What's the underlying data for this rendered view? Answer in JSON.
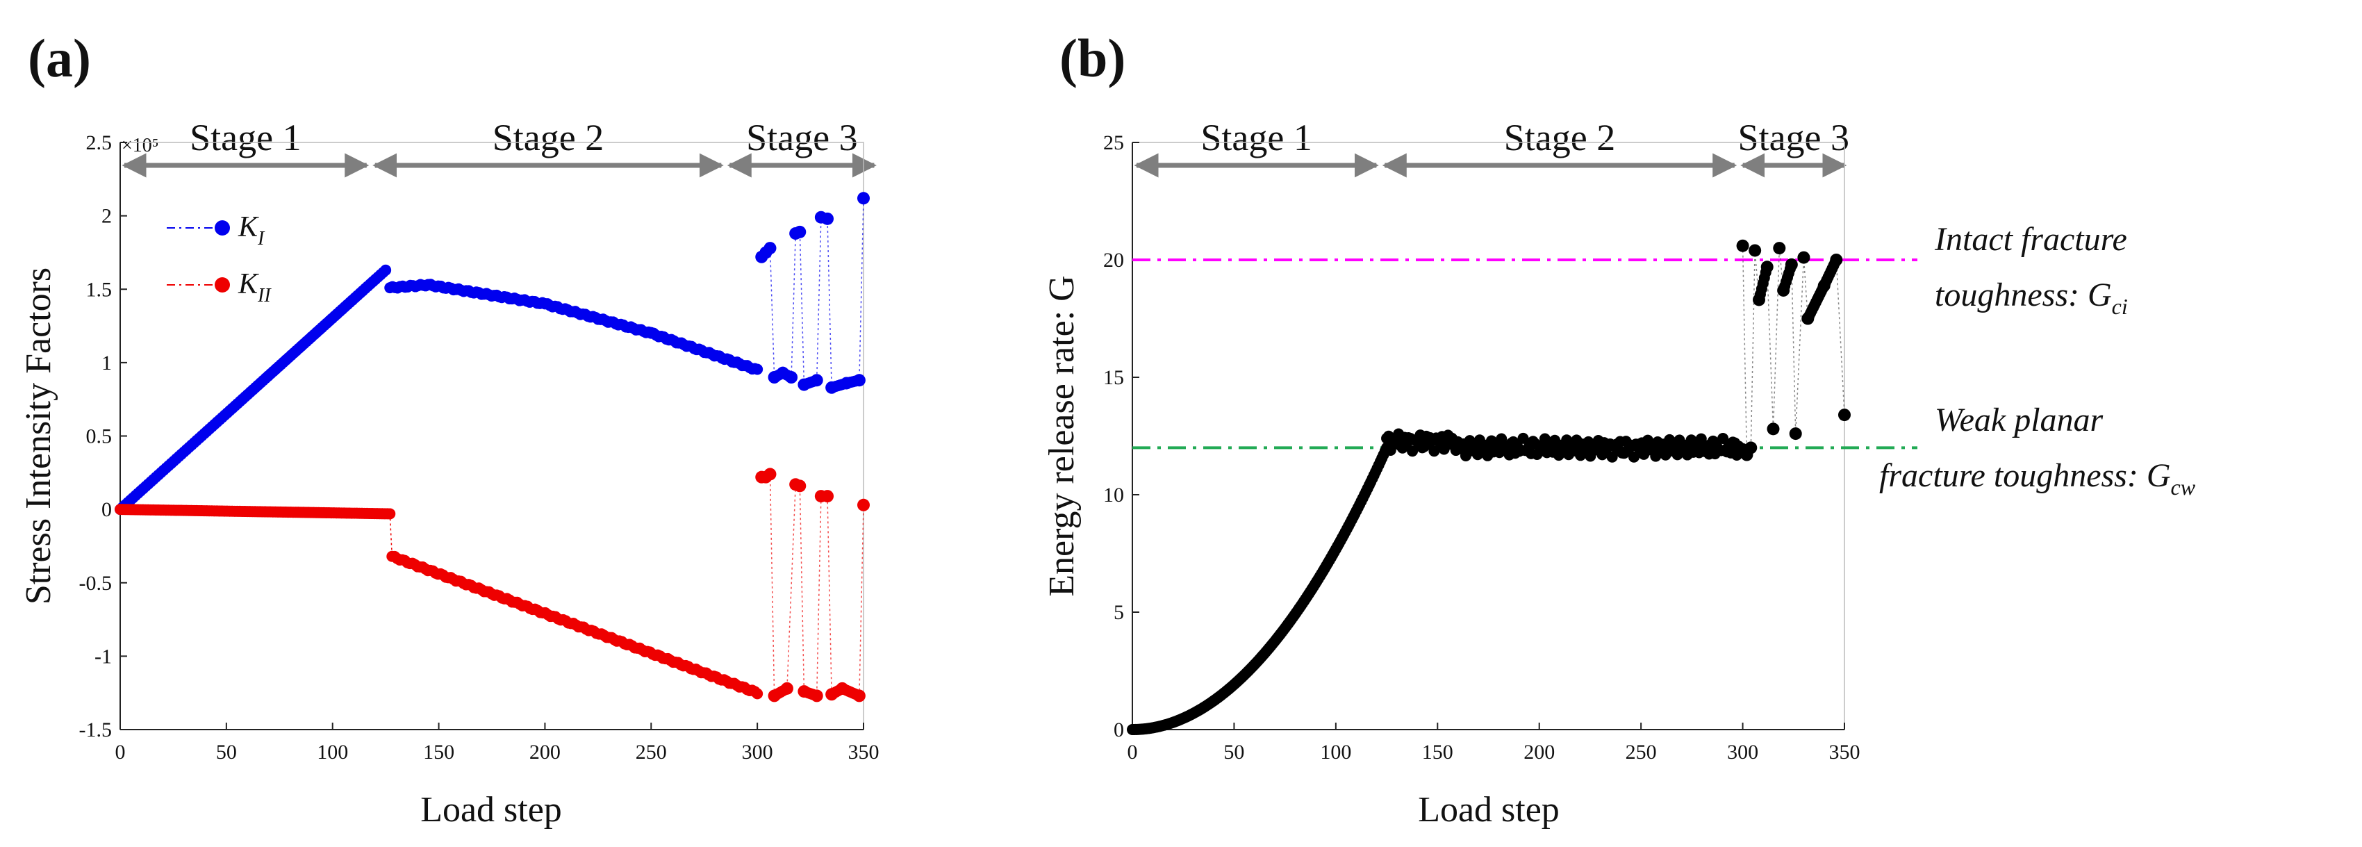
{
  "figure": {
    "panel_a_label": "(a)",
    "panel_b_label": "(b)"
  },
  "chart_data": [
    {
      "type": "scatter",
      "ylabel": "Stress Intensity Factors",
      "xlabel": "Load step",
      "y_multiplier": "×10⁵",
      "xlim": [
        0,
        350
      ],
      "ylim": [
        -1.5,
        2.5
      ],
      "xticks": [
        "0",
        "50",
        "100",
        "150",
        "200",
        "250",
        "300",
        "350"
      ],
      "yticks": [
        "-1.5",
        "-1",
        "-0.5",
        "0",
        "0.5",
        "1",
        "1.5",
        "2",
        "2.5"
      ],
      "legend_position": "top-left",
      "stages": [
        {
          "label": "Stage 1",
          "from": 0,
          "to": 118
        },
        {
          "label": "Stage 2",
          "from": 118,
          "to": 285
        },
        {
          "label": "Stage 3",
          "from": 285,
          "to": 357
        }
      ],
      "series": [
        {
          "name": "K",
          "subscript": "I",
          "color": "#0000ee",
          "segments": [
            {
              "x_from": 0,
              "x_to": 125,
              "y_from": 0,
              "y_to": 1.63
            },
            {
              "x_from": 127,
              "x_to": 145,
              "y_from": 1.51,
              "y_to": 1.53
            },
            {
              "x_from": 145,
              "x_to": 200,
              "y_from": 1.53,
              "y_to": 1.4
            },
            {
              "x_from": 200,
              "x_to": 250,
              "y_from": 1.4,
              "y_to": 1.2
            },
            {
              "x_from": 250,
              "x_to": 300,
              "y_from": 1.2,
              "y_to": 0.95
            }
          ],
          "stage3_points": [
            [
              302,
              1.72
            ],
            [
              304,
              1.75
            ],
            [
              306,
              1.78
            ],
            [
              308,
              0.9
            ],
            [
              312,
              0.93
            ],
            [
              316,
              0.9
            ],
            [
              318,
              1.88
            ],
            [
              320,
              1.89
            ],
            [
              322,
              0.85
            ],
            [
              328,
              0.88
            ],
            [
              330,
              1.99
            ],
            [
              333,
              1.98
            ],
            [
              335,
              0.83
            ],
            [
              342,
              0.86
            ],
            [
              348,
              0.88
            ],
            [
              350,
              2.12
            ]
          ]
        },
        {
          "name": "K",
          "subscript": "II",
          "color": "#ee0000",
          "segments": [
            {
              "x_from": 0,
              "x_to": 127,
              "y_from": 0,
              "y_to": -0.03
            },
            {
              "x_from": 128,
              "x_to": 300,
              "y_from": -0.32,
              "y_to": -1.25
            }
          ],
          "stage3_points": [
            [
              302,
              0.22
            ],
            [
              304,
              0.22
            ],
            [
              306,
              0.24
            ],
            [
              308,
              -1.27
            ],
            [
              314,
              -1.22
            ],
            [
              318,
              0.17
            ],
            [
              320,
              0.16
            ],
            [
              322,
              -1.24
            ],
            [
              328,
              -1.27
            ],
            [
              330,
              0.09
            ],
            [
              333,
              0.09
            ],
            [
              335,
              -1.26
            ],
            [
              340,
              -1.22
            ],
            [
              348,
              -1.27
            ],
            [
              350,
              0.03
            ]
          ]
        }
      ]
    },
    {
      "type": "scatter",
      "ylabel": "Energy release rate: G",
      "xlabel": "Load step",
      "xlim": [
        0,
        350
      ],
      "ylim": [
        0,
        25
      ],
      "xticks": [
        "0",
        "50",
        "100",
        "150",
        "200",
        "250",
        "300",
        "350"
      ],
      "yticks": [
        "0",
        "5",
        "10",
        "15",
        "20",
        "25"
      ],
      "stages": [
        {
          "label": "Stage 1",
          "from": 0,
          "to": 122
        },
        {
          "label": "Stage 2",
          "from": 122,
          "to": 298
        },
        {
          "label": "Stage 3",
          "from": 298,
          "to": 352
        }
      ],
      "series": [
        {
          "name": "G",
          "color": "#000000",
          "rise": {
            "x_from": 0,
            "x_to": 125,
            "y_at_end": 12.0
          },
          "plateau": {
            "x_from": 125,
            "x_to": 300,
            "y": 12.0
          },
          "stage3_points": [
            [
              300,
              20.6
            ],
            [
              302,
              11.7
            ],
            [
              304,
              12.0
            ],
            [
              306,
              20.4
            ],
            [
              308,
              18.3
            ],
            [
              312,
              19.7
            ],
            [
              315,
              12.8
            ],
            [
              318,
              20.5
            ],
            [
              320,
              18.7
            ],
            [
              324,
              19.8
            ],
            [
              326,
              12.6
            ],
            [
              330,
              20.1
            ],
            [
              332,
              17.5
            ],
            [
              340,
              18.9
            ],
            [
              346,
              20.0
            ],
            [
              350,
              13.4
            ]
          ]
        }
      ],
      "reference_lines": [
        {
          "y": 20.0,
          "color": "#ff00ff",
          "label_line1": "Intact fracture",
          "label_line2": "toughness: G",
          "subscript": "ci"
        },
        {
          "y": 12.0,
          "color": "#22aa55",
          "label_line1": "Weak planar",
          "label_line2": "fracture toughness: G",
          "subscript": "cw"
        }
      ]
    }
  ]
}
